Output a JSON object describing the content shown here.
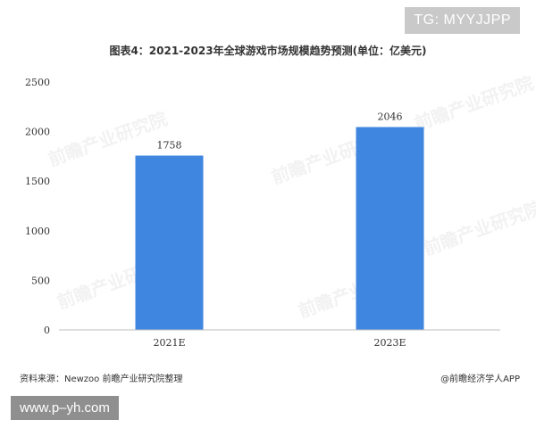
{
  "corner_tag": "TG: MYYJJPP",
  "watermark_text": "前瞻产业研究院",
  "footer": {
    "source": "资料来源：Newzoo 前瞻产业研究院整理",
    "brand": "@前瞻经济学人APP"
  },
  "url_banner": "www.p–yh.com",
  "colors": {
    "bar": "#3f86e0",
    "axis": "#bfbfbf",
    "text": "#333333"
  },
  "chart_data": {
    "type": "bar",
    "title": "图表4：2021-2023年全球游戏市场规模趋势预测(单位：亿美元)",
    "categories": [
      "2021E",
      "2023E"
    ],
    "values": [
      1758,
      2046
    ],
    "data_labels": [
      "1758",
      "2046"
    ],
    "yticks": [
      "0",
      "500",
      "1000",
      "1500",
      "2000",
      "2500"
    ],
    "ylim": [
      0,
      2500
    ],
    "xlabel": "",
    "ylabel": "",
    "grid": false
  }
}
